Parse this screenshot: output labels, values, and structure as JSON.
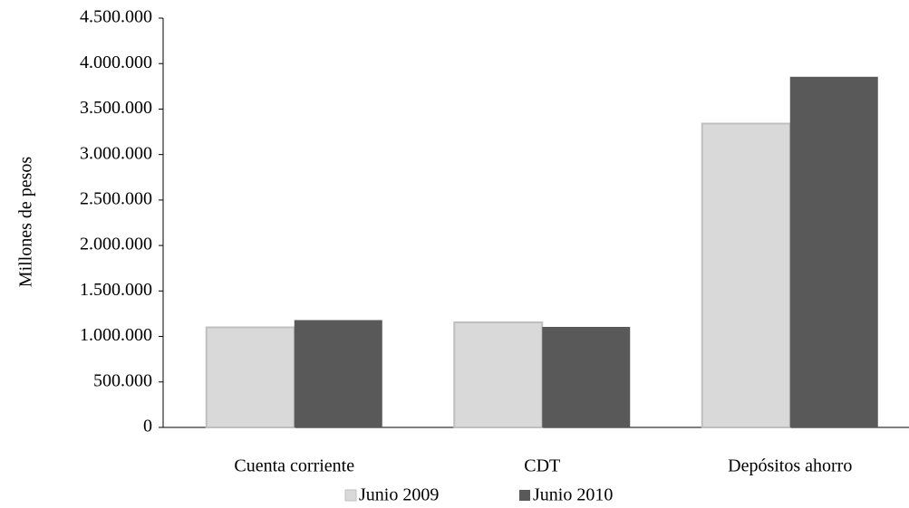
{
  "chart_data": {
    "type": "bar",
    "y_label": "Millones de pesos",
    "categories": [
      "Cuenta corriente",
      "CDT",
      "Depósitos ahorro"
    ],
    "series": [
      {
        "name": "Junio 2009",
        "color": "#d9d9d9",
        "values": [
          1100000,
          1155000,
          3340000
        ]
      },
      {
        "name": "Junio 2010",
        "color": "#595959",
        "values": [
          1180000,
          1105000,
          3855000
        ]
      }
    ],
    "ylim": [
      0,
      4500000
    ],
    "yticks": [
      0,
      {
        "value": 500000,
        "label": "500.000"
      },
      {
        "value": 1000000,
        "label": "1.000.000"
      },
      {
        "value": 1500000,
        "label": "1.500.000"
      },
      {
        "value": 2000000,
        "label": "2.000.000"
      },
      {
        "value": 2500000,
        "label": "2.500.000"
      },
      {
        "value": 3000000,
        "label": "3.000.000"
      },
      {
        "value": 3500000,
        "label": "3.500.000"
      },
      {
        "value": 4000000,
        "label": "4.000.000"
      },
      {
        "value": 4500000,
        "label": "4.500.000"
      }
    ],
    "grid": false
  }
}
